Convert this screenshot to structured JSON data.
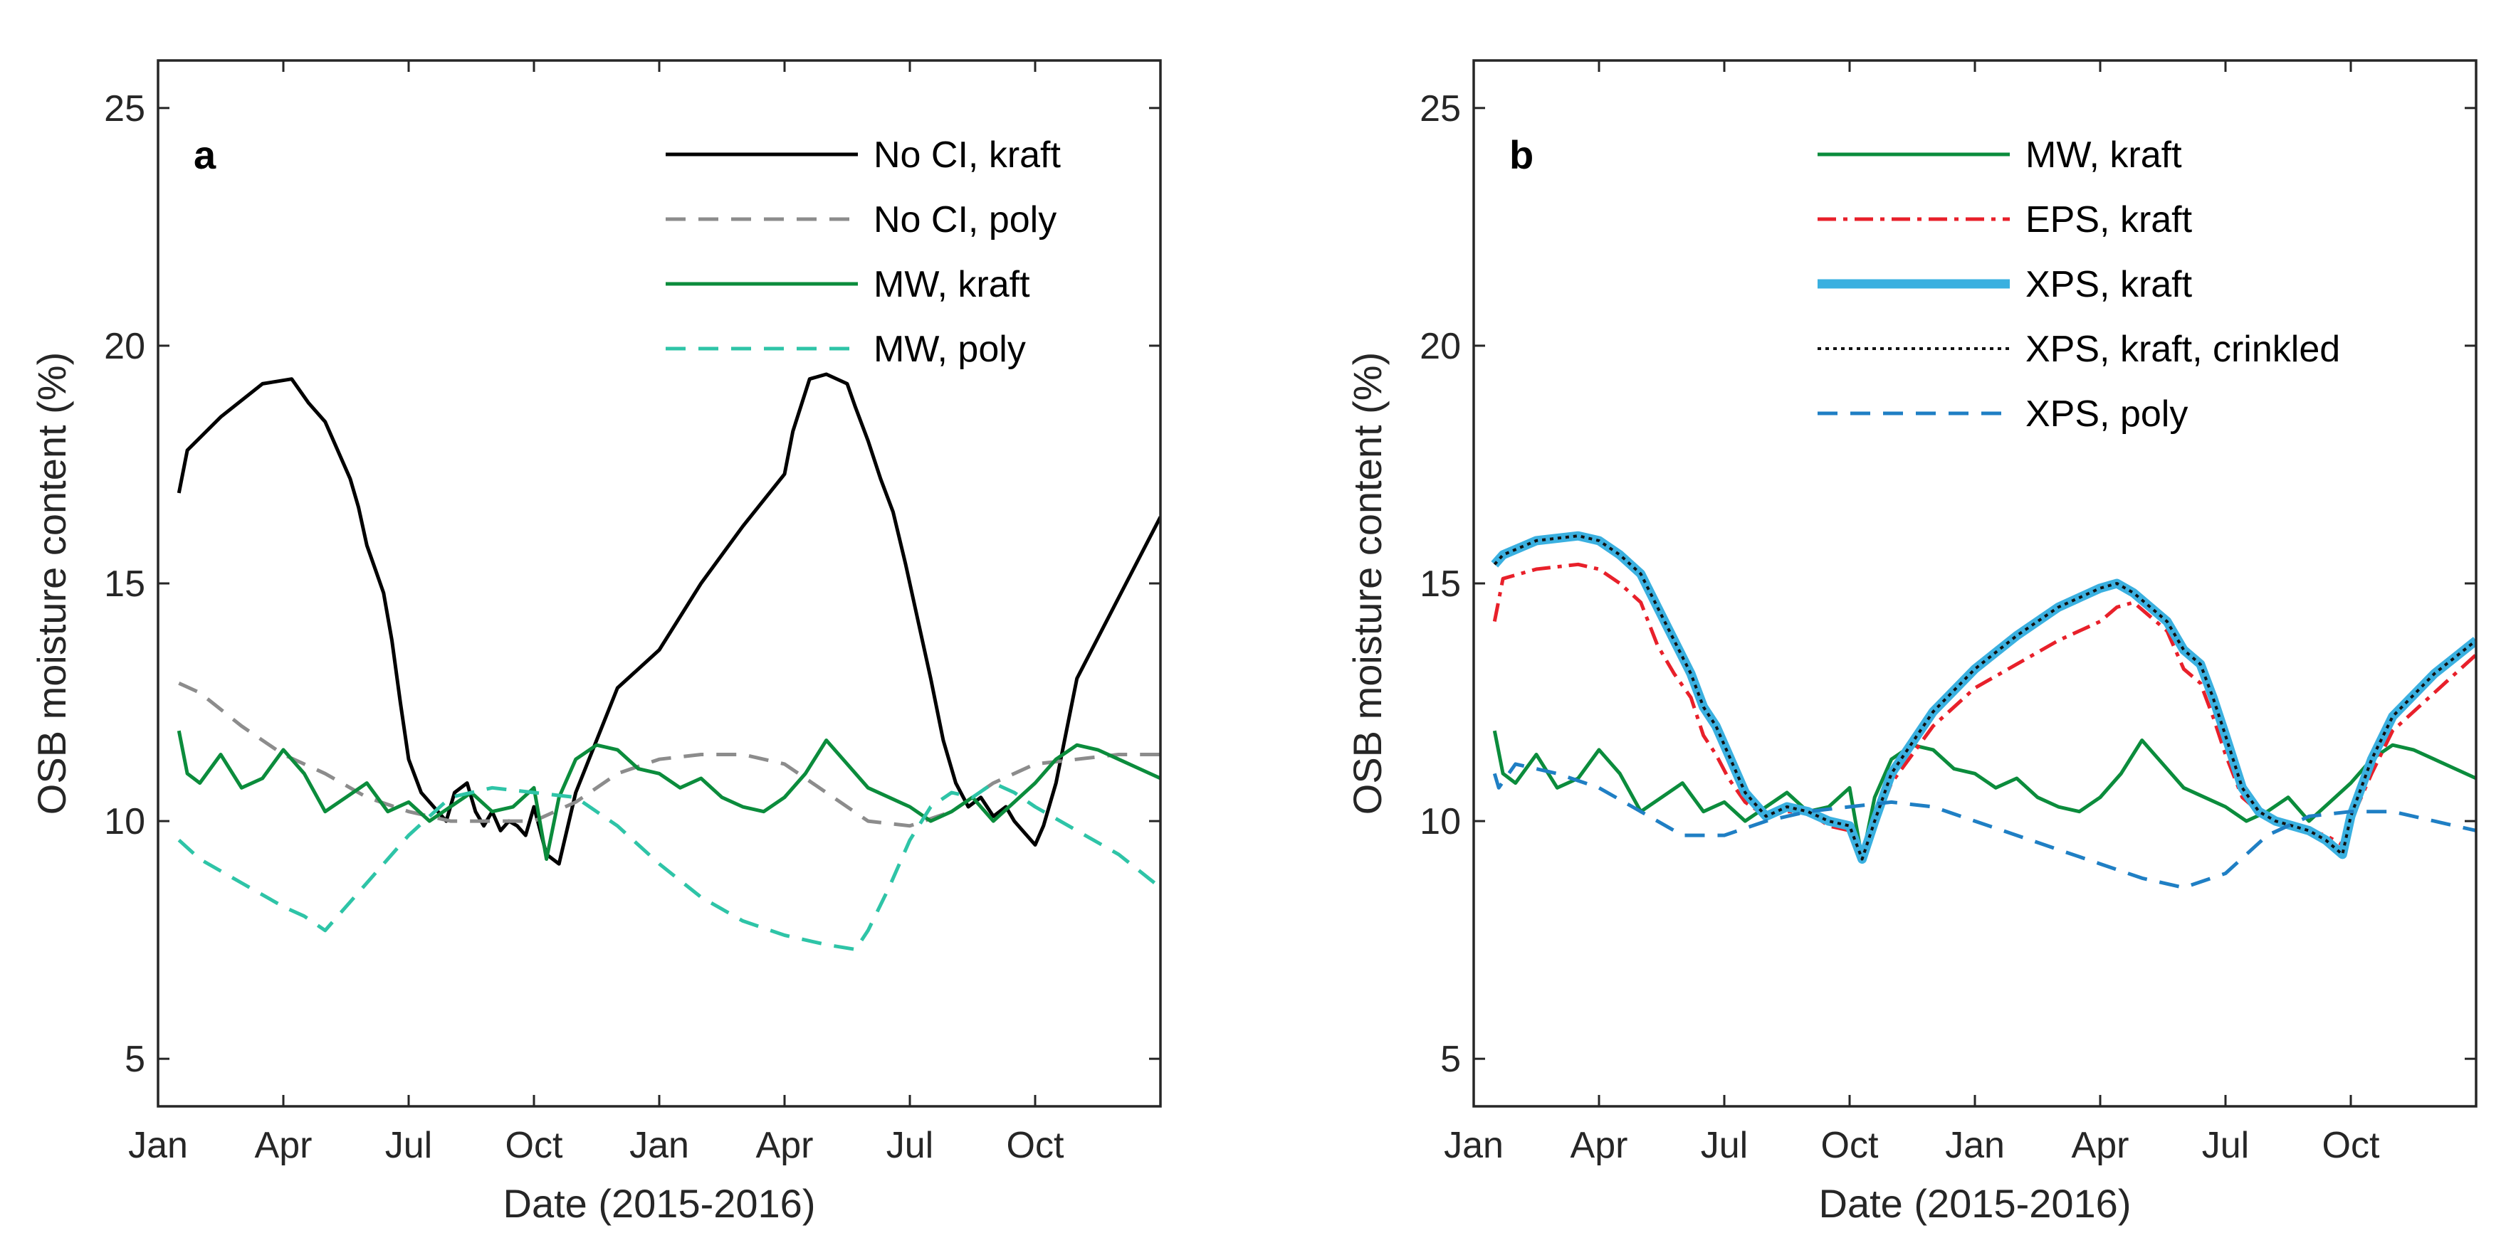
{
  "chart_data": [
    {
      "type": "line",
      "panel": "a",
      "xlabel": "Date (2015-2016)",
      "ylabel": "OSB moisture content (%)",
      "ylim": [
        4,
        26
      ],
      "xlim": [
        0,
        24
      ],
      "x_ticks": [
        0,
        3,
        6,
        9,
        12,
        15,
        18,
        21
      ],
      "x_tick_labels": [
        "Jan",
        "Apr",
        "Jul",
        "Oct",
        "Jan",
        "Apr",
        "Jul",
        "Oct"
      ],
      "y_ticks": [
        5,
        10,
        15,
        20,
        25
      ],
      "y_tick_labels": [
        "5",
        "10",
        "15",
        "20",
        "25"
      ],
      "series": [
        {
          "name": "No CI, kraft",
          "color": "#000000",
          "dash": "",
          "width": 5,
          "x": [
            0.5,
            0.7,
            1.5,
            2.5,
            3.2,
            3.6,
            4.0,
            4.3,
            4.6,
            4.8,
            5.0,
            5.2,
            5.4,
            5.6,
            5.8,
            6.0,
            6.3,
            6.6,
            6.9,
            7.1,
            7.4,
            7.6,
            7.8,
            8.0,
            8.2,
            8.4,
            8.6,
            8.8,
            9.0,
            9.3,
            9.6,
            10.0,
            11.0,
            12.0,
            13.0,
            14.0,
            15.0,
            15.2,
            15.6,
            16.0,
            16.5,
            16.7,
            17.0,
            17.3,
            17.6,
            17.9,
            18.2,
            18.5,
            18.8,
            19.1,
            19.4,
            19.7,
            20.0,
            20.3,
            20.5,
            20.7,
            21.0,
            21.2,
            21.5,
            22.0,
            23.0,
            24.0
          ],
          "y": [
            16.9,
            17.8,
            18.5,
            19.2,
            19.3,
            18.8,
            18.4,
            17.8,
            17.2,
            16.6,
            15.8,
            15.3,
            14.8,
            13.8,
            12.5,
            11.3,
            10.6,
            10.3,
            10.0,
            10.6,
            10.8,
            10.2,
            9.9,
            10.2,
            9.8,
            10.0,
            9.9,
            9.7,
            10.3,
            9.3,
            9.1,
            10.6,
            12.8,
            13.6,
            15.0,
            16.2,
            17.3,
            18.2,
            19.3,
            19.4,
            19.2,
            18.7,
            18.0,
            17.2,
            16.5,
            15.4,
            14.2,
            13.0,
            11.7,
            10.8,
            10.3,
            10.5,
            10.1,
            10.3,
            10.0,
            9.8,
            9.5,
            9.9,
            10.8,
            13.0,
            14.7,
            16.4
          ]
        },
        {
          "name": "No CI, poly",
          "color": "#8c8c8c",
          "dash": "28,18",
          "width": 5,
          "x": [
            0.5,
            1.0,
            2.0,
            3.0,
            4.0,
            5.0,
            6.0,
            7.0,
            8.0,
            9.0,
            10.0,
            11.0,
            12.0,
            13.0,
            14.0,
            15.0,
            16.0,
            17.0,
            18.0,
            19.0,
            20.0,
            21.0,
            22.0,
            23.0,
            24.0
          ],
          "y": [
            12.9,
            12.7,
            12.0,
            11.4,
            11.0,
            10.5,
            10.2,
            10.0,
            10.0,
            10.0,
            10.4,
            11.0,
            11.3,
            11.4,
            11.4,
            11.2,
            10.6,
            10.0,
            9.9,
            10.2,
            10.8,
            11.2,
            11.3,
            11.4,
            11.4
          ]
        },
        {
          "name": "MW, kraft",
          "color": "#0b8c3c",
          "dash": "",
          "width": 5,
          "x": [
            0.5,
            0.7,
            1.0,
            1.5,
            2.0,
            2.5,
            3.0,
            3.5,
            4.0,
            4.5,
            5.0,
            5.5,
            6.0,
            6.5,
            7.0,
            7.5,
            8.0,
            8.5,
            9.0,
            9.3,
            9.6,
            10.0,
            10.5,
            11.0,
            11.5,
            12.0,
            12.5,
            13.0,
            13.5,
            14.0,
            14.5,
            15.0,
            15.5,
            16.0,
            16.5,
            17.0,
            17.5,
            18.0,
            18.5,
            19.0,
            19.5,
            20.0,
            20.5,
            21.0,
            21.5,
            22.0,
            22.5,
            23.0,
            23.5,
            24.0
          ],
          "y": [
            11.9,
            11.0,
            10.8,
            11.4,
            10.7,
            10.9,
            11.5,
            11.0,
            10.2,
            10.5,
            10.8,
            10.2,
            10.4,
            10.0,
            10.3,
            10.6,
            10.2,
            10.3,
            10.7,
            9.2,
            10.5,
            11.3,
            11.6,
            11.5,
            11.1,
            11.0,
            10.7,
            10.9,
            10.5,
            10.3,
            10.2,
            10.5,
            11.0,
            11.7,
            11.2,
            10.7,
            10.5,
            10.3,
            10.0,
            10.2,
            10.5,
            10.0,
            10.4,
            10.8,
            11.3,
            11.6,
            11.5,
            11.3,
            11.1,
            10.9
          ]
        },
        {
          "name": "MW, poly",
          "color": "#2ec4a7",
          "dash": "28,18",
          "width": 5,
          "x": [
            0.5,
            1.0,
            2.0,
            3.0,
            3.5,
            4.0,
            5.0,
            6.0,
            7.0,
            8.0,
            9.0,
            10.0,
            11.0,
            12.0,
            13.0,
            14.0,
            15.0,
            16.0,
            16.7,
            17.0,
            17.5,
            18.0,
            18.5,
            19.0,
            19.5,
            20.0,
            20.5,
            21.0,
            22.0,
            23.0,
            24.0
          ],
          "y": [
            9.6,
            9.2,
            8.7,
            8.2,
            8.0,
            7.7,
            8.7,
            9.7,
            10.5,
            10.7,
            10.6,
            10.5,
            9.9,
            9.1,
            8.4,
            7.9,
            7.6,
            7.4,
            7.3,
            7.7,
            8.6,
            9.6,
            10.3,
            10.6,
            10.5,
            10.8,
            10.6,
            10.3,
            9.8,
            9.3,
            8.6
          ]
        }
      ],
      "legend": [
        "No CI, kraft",
        "No CI, poly",
        "MW, kraft",
        "MW, poly"
      ]
    },
    {
      "type": "line",
      "panel": "b",
      "xlabel": "Date (2015-2016)",
      "ylabel": "OSB moisture content (%)",
      "ylim": [
        4,
        26
      ],
      "xlim": [
        0,
        24
      ],
      "x_ticks": [
        0,
        3,
        6,
        9,
        12,
        15,
        18,
        21
      ],
      "x_tick_labels": [
        "Jan",
        "Apr",
        "Jul",
        "Oct",
        "Jan",
        "Apr",
        "Jul",
        "Oct"
      ],
      "y_ticks": [
        5,
        10,
        15,
        20,
        25
      ],
      "y_tick_labels": [
        "5",
        "10",
        "15",
        "20",
        "25"
      ],
      "series": [
        {
          "name": "MW, kraft",
          "color": "#0b8c3c",
          "dash": "",
          "width": 5,
          "x": [
            0.5,
            0.7,
            1.0,
            1.5,
            2.0,
            2.5,
            3.0,
            3.5,
            4.0,
            4.5,
            5.0,
            5.5,
            6.0,
            6.5,
            7.0,
            7.5,
            8.0,
            8.5,
            9.0,
            9.3,
            9.6,
            10.0,
            10.5,
            11.0,
            11.5,
            12.0,
            12.5,
            13.0,
            13.5,
            14.0,
            14.5,
            15.0,
            15.5,
            16.0,
            16.5,
            17.0,
            17.5,
            18.0,
            18.5,
            19.0,
            19.5,
            20.0,
            20.5,
            21.0,
            21.5,
            22.0,
            22.5,
            23.0,
            23.5,
            24.0
          ],
          "y": [
            11.9,
            11.0,
            10.8,
            11.4,
            10.7,
            10.9,
            11.5,
            11.0,
            10.2,
            10.5,
            10.8,
            10.2,
            10.4,
            10.0,
            10.3,
            10.6,
            10.2,
            10.3,
            10.7,
            9.2,
            10.5,
            11.3,
            11.6,
            11.5,
            11.1,
            11.0,
            10.7,
            10.9,
            10.5,
            10.3,
            10.2,
            10.5,
            11.0,
            11.7,
            11.2,
            10.7,
            10.5,
            10.3,
            10.0,
            10.2,
            10.5,
            10.0,
            10.4,
            10.8,
            11.3,
            11.6,
            11.5,
            11.3,
            11.1,
            10.9
          ]
        },
        {
          "name": "EPS, kraft",
          "color": "#e8202a",
          "dash": "26,10,6,10",
          "width": 5,
          "x": [
            0.5,
            0.7,
            1.5,
            2.5,
            3.0,
            3.5,
            4.0,
            4.4,
            4.8,
            5.2,
            5.5,
            5.8,
            6.1,
            6.5,
            7.0,
            7.5,
            8.0,
            8.5,
            9.0,
            9.3,
            9.6,
            10.0,
            11.0,
            12.0,
            13.0,
            14.0,
            15.0,
            15.4,
            15.8,
            16.2,
            16.6,
            17.0,
            17.4,
            17.7,
            18.0,
            18.4,
            18.8,
            19.2,
            19.6,
            20.0,
            20.4,
            20.8,
            21.0,
            21.5,
            22.0,
            23.0,
            24.0
          ],
          "y": [
            14.2,
            15.1,
            15.3,
            15.4,
            15.3,
            15.0,
            14.6,
            13.7,
            13.1,
            12.6,
            11.8,
            11.4,
            10.9,
            10.4,
            10.1,
            10.2,
            10.2,
            9.9,
            9.8,
            9.2,
            9.9,
            10.8,
            12.0,
            12.8,
            13.3,
            13.8,
            14.2,
            14.5,
            14.6,
            14.3,
            14.0,
            13.2,
            12.9,
            12.2,
            11.4,
            10.5,
            10.2,
            10.0,
            9.9,
            9.8,
            9.7,
            9.5,
            10.0,
            11.0,
            11.9,
            12.7,
            13.5
          ]
        },
        {
          "name": "XPS, kraft",
          "color": "#3ab0e0",
          "dash": "",
          "width": 13,
          "x": [
            0.5,
            0.7,
            1.5,
            2.5,
            3.0,
            3.5,
            4.0,
            4.4,
            4.8,
            5.2,
            5.5,
            5.8,
            6.1,
            6.5,
            7.0,
            7.5,
            8.0,
            8.5,
            9.0,
            9.3,
            9.6,
            10.0,
            11.0,
            12.0,
            13.0,
            14.0,
            15.0,
            15.4,
            15.8,
            16.2,
            16.6,
            17.0,
            17.4,
            17.7,
            18.0,
            18.4,
            18.8,
            19.2,
            19.6,
            20.0,
            20.4,
            20.8,
            21.0,
            21.5,
            22.0,
            23.0,
            24.0
          ],
          "y": [
            15.4,
            15.6,
            15.9,
            16.0,
            15.9,
            15.6,
            15.2,
            14.5,
            13.8,
            13.1,
            12.4,
            12.0,
            11.4,
            10.6,
            10.1,
            10.3,
            10.2,
            10.0,
            9.9,
            9.2,
            10.0,
            11.0,
            12.3,
            13.2,
            13.9,
            14.5,
            14.9,
            15.0,
            14.8,
            14.5,
            14.2,
            13.6,
            13.3,
            12.6,
            11.8,
            10.7,
            10.2,
            10.0,
            9.9,
            9.8,
            9.6,
            9.3,
            10.1,
            11.3,
            12.2,
            13.1,
            13.8
          ]
        },
        {
          "name": "XPS, kraft, crinkled",
          "color": "#111111",
          "dash": "5,6",
          "width": 4,
          "x": [
            0.5,
            0.7,
            1.5,
            2.5,
            3.0,
            3.5,
            4.0,
            4.4,
            4.8,
            5.2,
            5.5,
            5.8,
            6.1,
            6.5,
            7.0,
            7.5,
            8.0,
            8.5,
            9.0,
            9.3,
            9.6,
            10.0,
            11.0,
            12.0,
            13.0,
            14.0,
            15.0,
            15.4,
            15.8,
            16.2,
            16.6,
            17.0,
            17.4,
            17.7,
            18.0,
            18.4,
            18.8,
            19.2,
            19.6,
            20.0,
            20.4,
            20.8,
            21.0,
            21.5,
            22.0,
            23.0,
            24.0
          ],
          "y": [
            15.4,
            15.6,
            15.9,
            16.0,
            15.9,
            15.6,
            15.2,
            14.5,
            13.8,
            13.1,
            12.4,
            12.0,
            11.4,
            10.6,
            10.1,
            10.3,
            10.2,
            10.0,
            9.9,
            9.2,
            10.0,
            11.0,
            12.3,
            13.2,
            13.9,
            14.5,
            14.9,
            15.0,
            14.8,
            14.5,
            14.2,
            13.6,
            13.3,
            12.6,
            11.8,
            10.7,
            10.2,
            10.0,
            9.9,
            9.8,
            9.6,
            9.3,
            10.1,
            11.3,
            12.2,
            13.1,
            13.8
          ]
        },
        {
          "name": "XPS, poly",
          "color": "#1f7fc4",
          "dash": "28,18",
          "width": 5,
          "x": [
            0.5,
            0.6,
            1.0,
            2.0,
            3.0,
            4.0,
            5.0,
            6.0,
            7.0,
            8.0,
            9.0,
            10.0,
            11.0,
            12.0,
            13.0,
            14.0,
            15.0,
            16.0,
            17.0,
            18.0,
            19.0,
            20.0,
            21.0,
            22.0,
            23.0,
            24.0
          ],
          "y": [
            11.0,
            10.7,
            11.2,
            11.0,
            10.7,
            10.2,
            9.7,
            9.7,
            10.0,
            10.2,
            10.3,
            10.4,
            10.3,
            10.0,
            9.7,
            9.4,
            9.1,
            8.8,
            8.6,
            8.9,
            9.7,
            10.1,
            10.2,
            10.2,
            10.0,
            9.8
          ]
        }
      ],
      "legend": [
        "MW, kraft",
        "EPS, kraft",
        "XPS, kraft",
        "XPS, kraft, crinkled",
        "XPS, poly"
      ]
    }
  ]
}
